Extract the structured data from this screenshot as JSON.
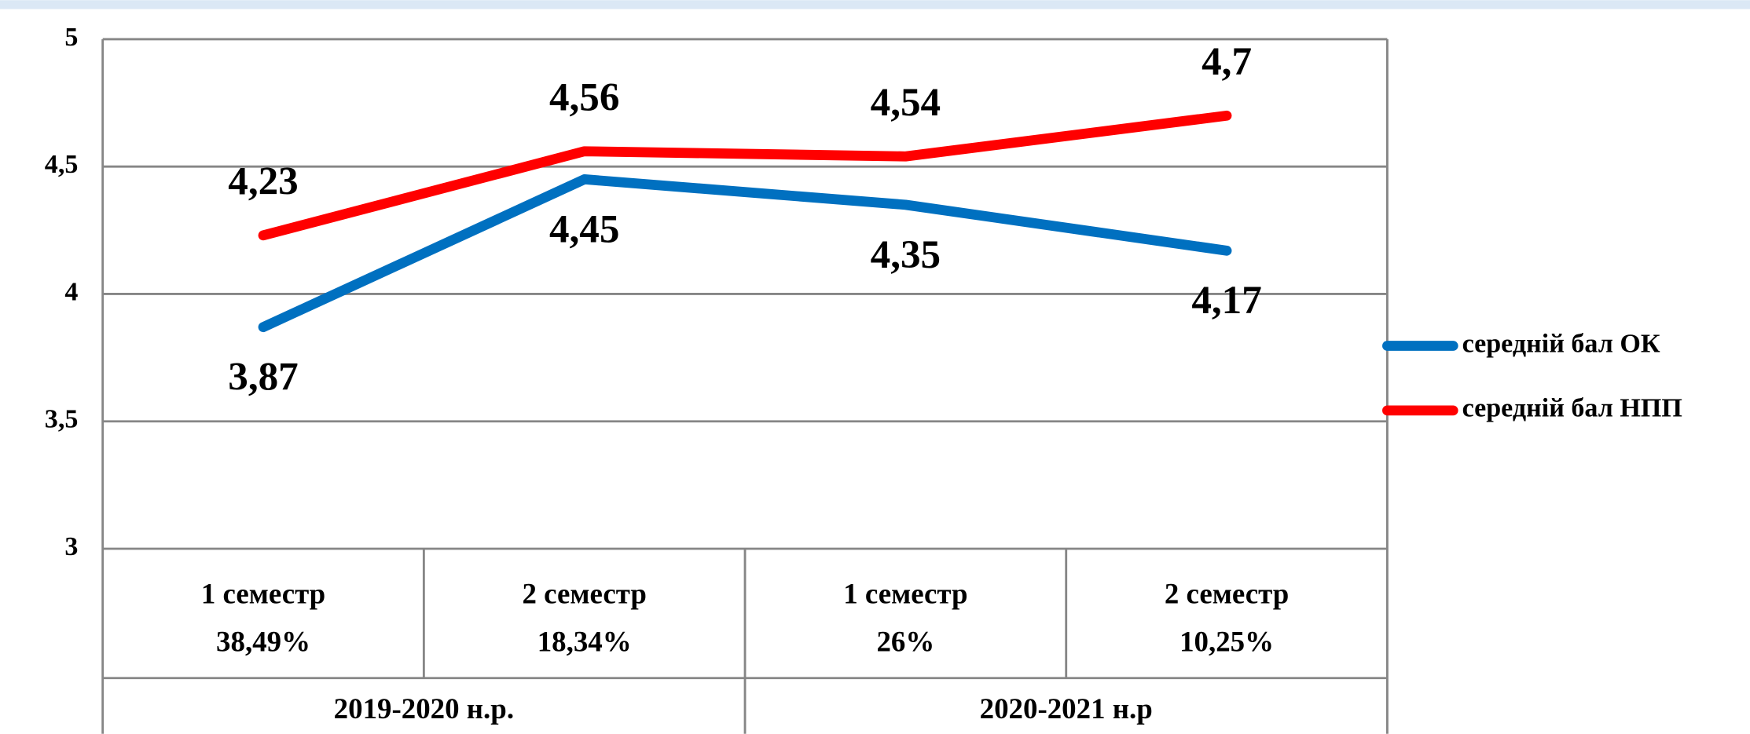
{
  "chart_data": {
    "type": "line",
    "categories": [
      [
        "1 семестр",
        "38,49%"
      ],
      [
        "2 семестр",
        "18,34%"
      ],
      [
        "1 семестр",
        "26%"
      ],
      [
        "2 семестр",
        "10,25%"
      ]
    ],
    "groups": [
      {
        "label": "2019-2020 н.р.",
        "span": 2
      },
      {
        "label": "2020-2021 н.р",
        "span": 2
      }
    ],
    "series": [
      {
        "name": "середній бал ОК",
        "color": "#0070c0",
        "values": [
          3.87,
          4.45,
          4.35,
          4.17
        ],
        "value_labels": [
          "3,87",
          "4,45",
          "4,35",
          "4,17"
        ]
      },
      {
        "name": "середній бал НПП",
        "color": "#ff0000",
        "values": [
          4.23,
          4.56,
          4.54,
          4.7
        ],
        "value_labels": [
          "4,23",
          "4,56",
          "4,54",
          "4,7"
        ]
      }
    ],
    "ylim": [
      3,
      5
    ],
    "yticks": [
      3,
      {
        "value": 3.5,
        "label": "3,5"
      },
      4,
      {
        "value": 4.5,
        "label": "4,5"
      },
      5
    ],
    "grid": true,
    "legend": "right"
  }
}
